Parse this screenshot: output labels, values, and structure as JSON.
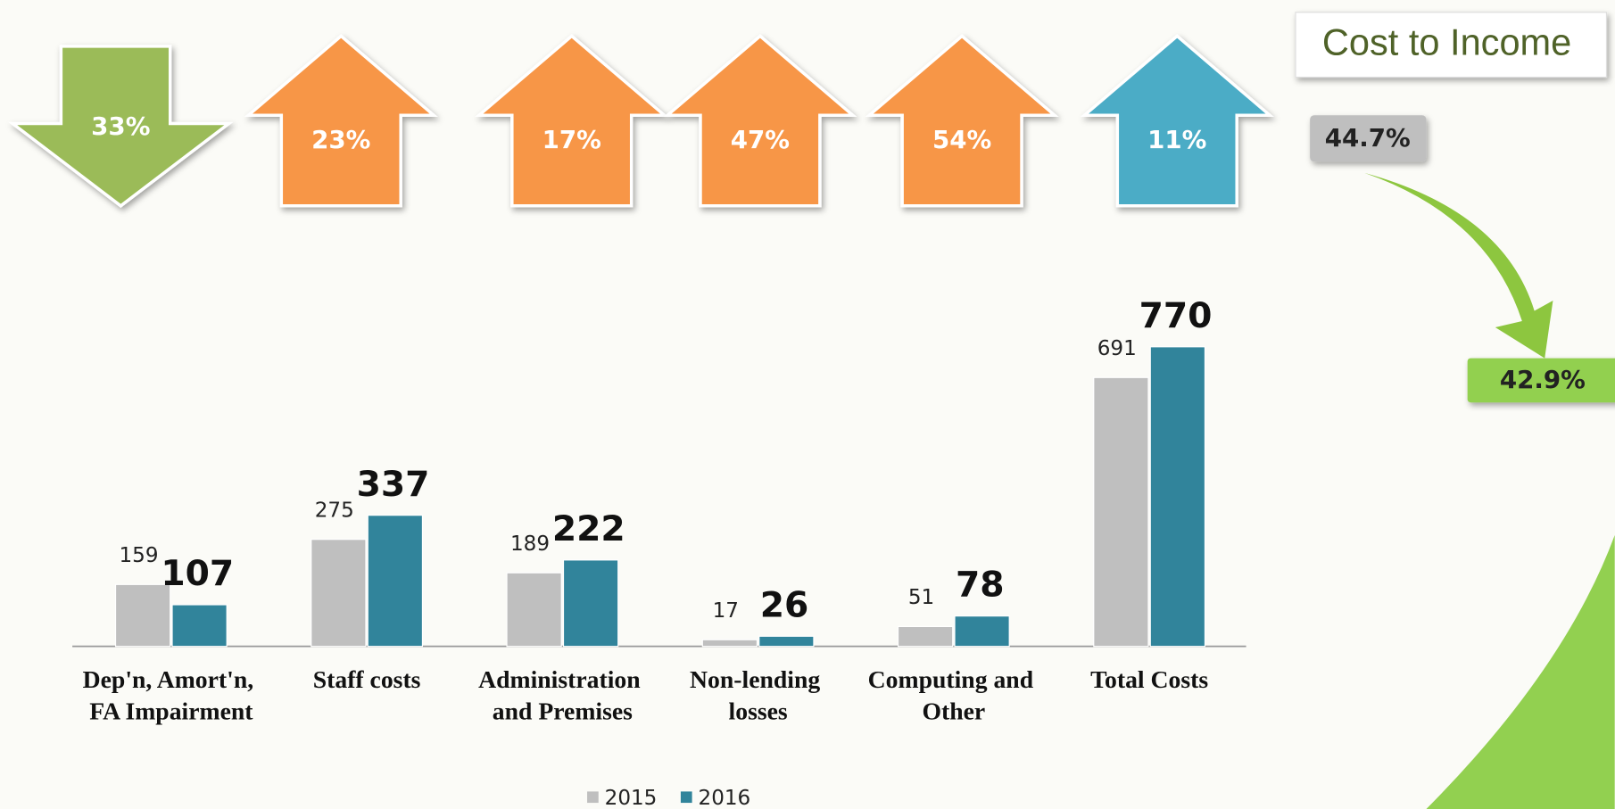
{
  "chart_data": {
    "type": "bar",
    "categories": [
      "Dep'n, Amort'n, FA Impairment",
      "Staff costs",
      "Administration and Premises",
      "Non-lending losses",
      "Computing and Other",
      "Total Costs"
    ],
    "series": [
      {
        "name": "2015",
        "color": "#bfbfbf",
        "values": [
          159,
          275,
          189,
          17,
          51,
          691
        ]
      },
      {
        "name": "2016",
        "color": "#31849b",
        "values": [
          107,
          337,
          222,
          26,
          78,
          770
        ]
      }
    ],
    "legend": "bottom"
  },
  "arrows": [
    {
      "label": "33%",
      "direction": "down",
      "color": "#9bbb59"
    },
    {
      "label": "23%",
      "direction": "up",
      "color": "#f79646"
    },
    {
      "label": "17%",
      "direction": "up",
      "color": "#f79646"
    },
    {
      "label": "47%",
      "direction": "up",
      "color": "#f79646"
    },
    {
      "label": "54%",
      "direction": "up",
      "color": "#f79646"
    },
    {
      "label": "11%",
      "direction": "up",
      "color": "#4bacc6"
    }
  ],
  "cost_to_income": {
    "title": "Cost to Income",
    "before": "44.7%",
    "after": "42.9%"
  }
}
